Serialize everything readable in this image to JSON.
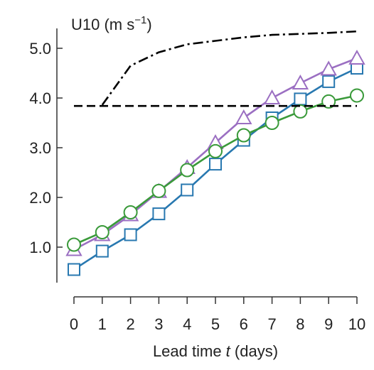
{
  "chart_data": {
    "type": "line",
    "title": "U10 (m s⁻¹)",
    "xlabel": "Lead time t (days)",
    "xlabel_parts": {
      "before": "Lead time ",
      "italic": "t",
      "after": " (days)"
    },
    "ylabel_parts": {
      "before": "U10 (m s",
      "sup": "−1",
      "after": ")"
    },
    "x": [
      0,
      1,
      2,
      3,
      4,
      5,
      6,
      7,
      8,
      9,
      10
    ],
    "xlim": [
      0,
      10
    ],
    "ylim": [
      0.0,
      5.4
    ],
    "xticks": [
      "0",
      "1",
      "2",
      "3",
      "4",
      "5",
      "6",
      "7",
      "8",
      "9",
      "10"
    ],
    "yticks": [
      {
        "value": 1.0,
        "label": "1.0"
      },
      {
        "value": 2.0,
        "label": "2.0"
      },
      {
        "value": 3.0,
        "label": "3.0"
      },
      {
        "value": 4.0,
        "label": "4.0"
      },
      {
        "value": 5.0,
        "label": "5.0"
      }
    ],
    "grid": false,
    "series": [
      {
        "color": "#2878b0",
        "marker": "square",
        "values": [
          0.55,
          0.92,
          1.25,
          1.67,
          2.15,
          2.67,
          3.15,
          3.6,
          3.98,
          4.33,
          4.6
        ]
      },
      {
        "color": "#9b6fc2",
        "marker": "triangle",
        "values": [
          0.95,
          1.25,
          1.65,
          2.12,
          2.6,
          3.1,
          3.6,
          4.0,
          4.3,
          4.58,
          4.8
        ]
      },
      {
        "color": "#3a9a3a",
        "marker": "circle",
        "values": [
          1.05,
          1.3,
          1.7,
          2.13,
          2.55,
          2.93,
          3.25,
          3.5,
          3.73,
          3.93,
          4.05
        ]
      },
      {
        "color": "#000000",
        "marker": "none",
        "dash": "dashed",
        "x": [
          0,
          10
        ],
        "values": [
          3.84,
          3.84
        ]
      },
      {
        "color": "#000000",
        "marker": "none",
        "dash": "dashdot",
        "x": [
          1,
          2,
          3,
          4,
          5,
          6,
          7,
          8,
          9,
          10
        ],
        "values": [
          3.86,
          4.65,
          4.92,
          5.08,
          5.15,
          5.22,
          5.27,
          5.29,
          5.31,
          5.34
        ]
      }
    ]
  }
}
